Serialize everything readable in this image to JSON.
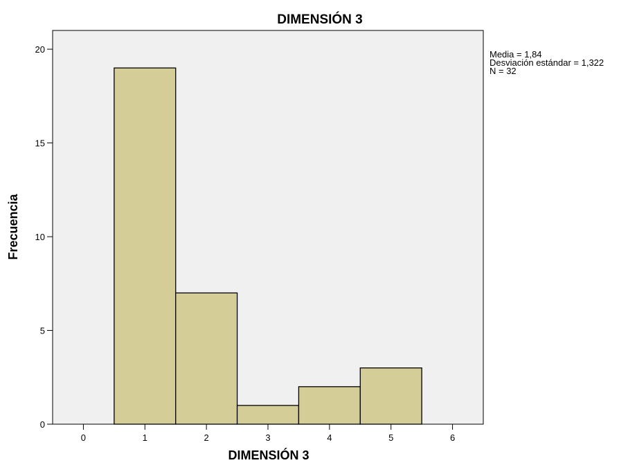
{
  "chart_data": {
    "type": "bar",
    "title": "DIMENSIÓN 3",
    "xlabel": "DIMENSIÓN 3",
    "ylabel": "Frecuencia",
    "bins": [
      {
        "x": 1,
        "count": 19
      },
      {
        "x": 2,
        "count": 7
      },
      {
        "x": 3,
        "count": 1
      },
      {
        "x": 4,
        "count": 2
      },
      {
        "x": 5,
        "count": 3
      }
    ],
    "bin_width": 1,
    "xlim": [
      -0.5,
      6.5
    ],
    "ylim": [
      0,
      21
    ],
    "xticks": [
      0,
      1,
      2,
      3,
      4,
      5,
      6
    ],
    "yticks": [
      0,
      5,
      10,
      15,
      20
    ],
    "colors": {
      "bar_fill": "#d4cd98",
      "bar_stroke": "#000000",
      "plot_bg": "#f0f0f0"
    },
    "grid": false
  },
  "stats": {
    "mean": "Media = 1,84",
    "std": "Desviación estándar = 1,322",
    "n": "N = 32"
  }
}
